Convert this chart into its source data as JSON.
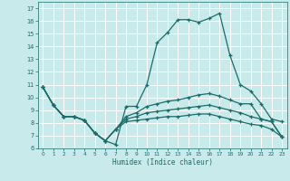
{
  "xlabel": "Humidex (Indice chaleur)",
  "bg_color": "#c8eaea",
  "grid_color": "#ffffff",
  "line_color": "#1a6b6b",
  "xlim": [
    -0.5,
    23.5
  ],
  "ylim": [
    6,
    17.5
  ],
  "xticks": [
    0,
    1,
    2,
    3,
    4,
    5,
    6,
    7,
    8,
    9,
    10,
    11,
    12,
    13,
    14,
    15,
    16,
    17,
    18,
    19,
    20,
    21,
    22,
    23
  ],
  "yticks": [
    6,
    7,
    8,
    9,
    10,
    11,
    12,
    13,
    14,
    15,
    16,
    17
  ],
  "lines": [
    {
      "x": [
        0,
        1,
        2,
        3,
        4,
        5,
        6,
        7,
        8,
        9,
        10,
        11,
        12,
        13,
        14,
        15,
        16,
        17,
        18,
        19,
        20,
        21,
        22,
        23
      ],
      "y": [
        10.8,
        9.4,
        8.5,
        8.5,
        8.2,
        7.2,
        6.6,
        6.3,
        9.3,
        9.3,
        11.0,
        14.3,
        15.1,
        16.1,
        16.1,
        15.9,
        16.2,
        16.6,
        13.3,
        11.0,
        10.5,
        9.5,
        8.3,
        8.1
      ]
    },
    {
      "x": [
        0,
        1,
        2,
        3,
        4,
        5,
        6,
        7,
        8,
        9,
        10,
        11,
        12,
        13,
        14,
        15,
        16,
        17,
        18,
        19,
        20,
        21,
        22,
        23
      ],
      "y": [
        10.8,
        9.4,
        8.5,
        8.5,
        8.2,
        7.2,
        6.6,
        7.5,
        8.5,
        8.8,
        9.3,
        9.5,
        9.7,
        9.8,
        10.0,
        10.2,
        10.3,
        10.1,
        9.8,
        9.5,
        9.5,
        8.3,
        8.1,
        6.9
      ]
    },
    {
      "x": [
        0,
        1,
        2,
        3,
        4,
        5,
        6,
        7,
        8,
        9,
        10,
        11,
        12,
        13,
        14,
        15,
        16,
        17,
        18,
        19,
        20,
        21,
        22,
        23
      ],
      "y": [
        10.8,
        9.4,
        8.5,
        8.5,
        8.2,
        7.2,
        6.6,
        7.5,
        8.3,
        8.5,
        8.8,
        8.9,
        9.0,
        9.1,
        9.2,
        9.3,
        9.4,
        9.2,
        9.0,
        8.8,
        8.5,
        8.3,
        8.1,
        6.9
      ]
    },
    {
      "x": [
        0,
        1,
        2,
        3,
        4,
        5,
        6,
        7,
        8,
        9,
        10,
        11,
        12,
        13,
        14,
        15,
        16,
        17,
        18,
        19,
        20,
        21,
        22,
        23
      ],
      "y": [
        10.8,
        9.4,
        8.5,
        8.5,
        8.2,
        7.2,
        6.6,
        7.5,
        8.1,
        8.2,
        8.3,
        8.4,
        8.5,
        8.5,
        8.6,
        8.7,
        8.7,
        8.5,
        8.3,
        8.1,
        7.9,
        7.8,
        7.5,
        6.9
      ]
    }
  ]
}
